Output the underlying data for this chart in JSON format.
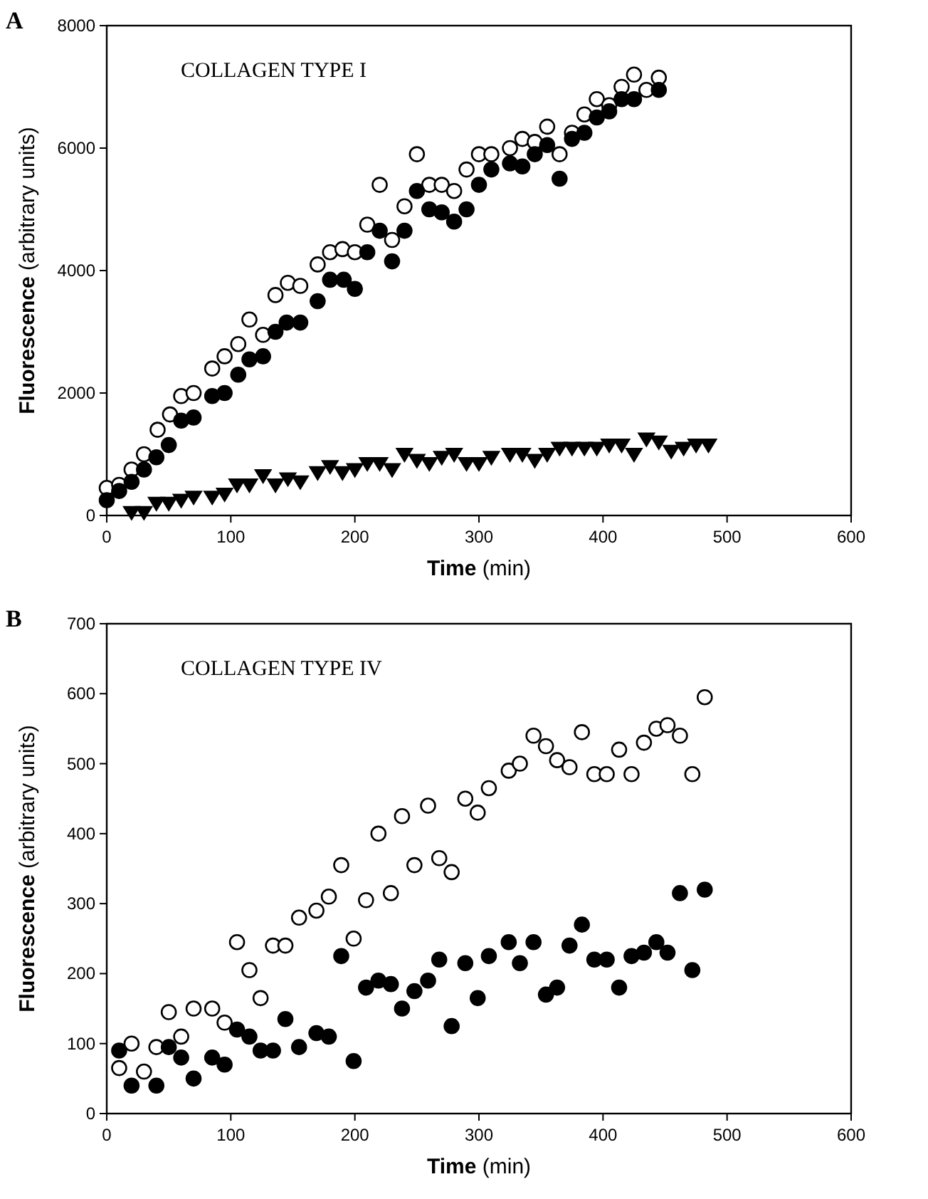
{
  "chart_data": [
    {
      "type": "scatter",
      "title": "A",
      "annotations": [
        "COLLAGEN TYPE I"
      ],
      "xlabel": "Time (min)",
      "ylabel": "Fluorescence (arbitrary units)",
      "xlim": [
        0,
        600
      ],
      "xticks": [
        0,
        100,
        200,
        300,
        400,
        500,
        600
      ],
      "ylim": [
        0,
        8000
      ],
      "yticks": [
        0,
        2000,
        4000,
        6000,
        8000
      ],
      "series": [
        {
          "color": "#ffffff",
          "marker": "circle",
          "x": [
            0,
            10,
            20,
            30,
            41,
            51,
            60,
            70,
            85,
            95,
            106,
            115,
            126,
            136,
            146,
            156,
            170,
            180,
            190,
            200,
            210,
            220,
            230,
            240,
            250,
            260,
            270,
            280,
            290,
            300,
            310,
            325,
            335,
            345,
            355,
            365,
            375,
            385,
            395,
            405,
            415,
            425,
            435,
            445
          ],
          "values": [
            450,
            500,
            750,
            1000,
            1400,
            1650,
            1950,
            2000,
            2400,
            2600,
            2800,
            3200,
            2950,
            3600,
            3800,
            3750,
            4100,
            4300,
            4350,
            4300,
            4750,
            5400,
            4500,
            5050,
            5900,
            5400,
            5400,
            5300,
            5650,
            5900,
            5900,
            6000,
            6150,
            6100,
            6350,
            5900,
            6250,
            6550,
            6800,
            6700,
            7000,
            7200,
            6950,
            7150
          ]
        },
        {
          "color": "#000000",
          "marker": "circle",
          "x": [
            0,
            10,
            20,
            30,
            40,
            50,
            60,
            70,
            85,
            95,
            106,
            115,
            126,
            136,
            145,
            156,
            170,
            180,
            191,
            200,
            210,
            220,
            230,
            240,
            250,
            260,
            270,
            280,
            290,
            300,
            310,
            325,
            335,
            345,
            355,
            365,
            375,
            385,
            395,
            405,
            415,
            425,
            445
          ],
          "values": [
            250,
            400,
            550,
            750,
            950,
            1150,
            1550,
            1600,
            1950,
            2000,
            2300,
            2550,
            2600,
            3000,
            3150,
            3150,
            3500,
            3850,
            3850,
            3700,
            4300,
            4650,
            4150,
            4650,
            5300,
            5000,
            4950,
            4800,
            5000,
            5400,
            5650,
            5750,
            5700,
            5900,
            6050,
            5500,
            6150,
            6250,
            6500,
            6600,
            6800,
            6800,
            6950
          ]
        },
        {
          "color": "#000000",
          "marker": "triangle",
          "x": [
            20,
            30,
            40,
            50,
            60,
            70,
            85,
            95,
            105,
            115,
            126,
            136,
            146,
            156,
            170,
            180,
            190,
            200,
            210,
            220,
            230,
            240,
            250,
            260,
            270,
            280,
            290,
            300,
            310,
            325,
            335,
            345,
            355,
            365,
            375,
            385,
            395,
            405,
            415,
            425,
            435,
            445,
            455,
            465,
            475,
            485
          ],
          "values": [
            50,
            50,
            200,
            200,
            250,
            300,
            300,
            350,
            500,
            500,
            650,
            500,
            600,
            550,
            700,
            800,
            700,
            750,
            850,
            850,
            750,
            1000,
            900,
            850,
            950,
            1000,
            850,
            850,
            950,
            1000,
            1000,
            900,
            1000,
            1100,
            1100,
            1100,
            1100,
            1150,
            1150,
            1000,
            1250,
            1200,
            1050,
            1100,
            1150,
            1150
          ]
        }
      ]
    },
    {
      "type": "scatter",
      "title": "B",
      "annotations": [
        "COLLAGEN TYPE IV"
      ],
      "xlabel": "Time (min)",
      "ylabel": "Fluorescence (arbitrary units)",
      "xlim": [
        0,
        600
      ],
      "xticks": [
        0,
        100,
        200,
        300,
        400,
        500,
        600
      ],
      "ylim": [
        0,
        700
      ],
      "yticks": [
        0,
        100,
        200,
        300,
        400,
        500,
        600,
        700
      ],
      "series": [
        {
          "color": "#ffffff",
          "marker": "circle",
          "x": [
            10,
            20,
            30,
            40,
            50,
            60,
            70,
            85,
            95,
            105,
            115,
            124,
            134,
            144,
            155,
            169,
            179,
            189,
            199,
            209,
            219,
            229,
            238,
            248,
            259,
            268,
            278,
            289,
            299,
            308,
            324,
            333,
            344,
            354,
            363,
            373,
            383,
            393,
            403,
            413,
            423,
            433,
            443,
            452,
            462,
            472,
            482
          ],
          "values": [
            65,
            100,
            60,
            95,
            145,
            110,
            150,
            150,
            130,
            245,
            205,
            165,
            240,
            240,
            280,
            290,
            310,
            355,
            250,
            305,
            400,
            315,
            425,
            355,
            440,
            365,
            345,
            450,
            430,
            465,
            490,
            500,
            540,
            525,
            505,
            495,
            545,
            485,
            485,
            520,
            485,
            530,
            550,
            555,
            540,
            485,
            595
          ]
        },
        {
          "color": "#000000",
          "marker": "circle",
          "x": [
            10,
            20,
            40,
            50,
            60,
            70,
            85,
            95,
            105,
            115,
            124,
            134,
            144,
            155,
            169,
            179,
            189,
            199,
            209,
            219,
            229,
            238,
            248,
            259,
            268,
            278,
            289,
            299,
            308,
            324,
            333,
            344,
            354,
            363,
            373,
            383,
            393,
            403,
            413,
            423,
            433,
            443,
            452,
            462,
            472,
            482
          ],
          "values": [
            90,
            40,
            40,
            95,
            80,
            50,
            80,
            70,
            120,
            110,
            90,
            90,
            135,
            95,
            115,
            110,
            225,
            75,
            180,
            190,
            185,
            150,
            175,
            190,
            220,
            125,
            215,
            165,
            225,
            245,
            215,
            245,
            170,
            180,
            240,
            270,
            220,
            220,
            180,
            225,
            230,
            245,
            230,
            315,
            205,
            320
          ]
        }
      ]
    }
  ]
}
